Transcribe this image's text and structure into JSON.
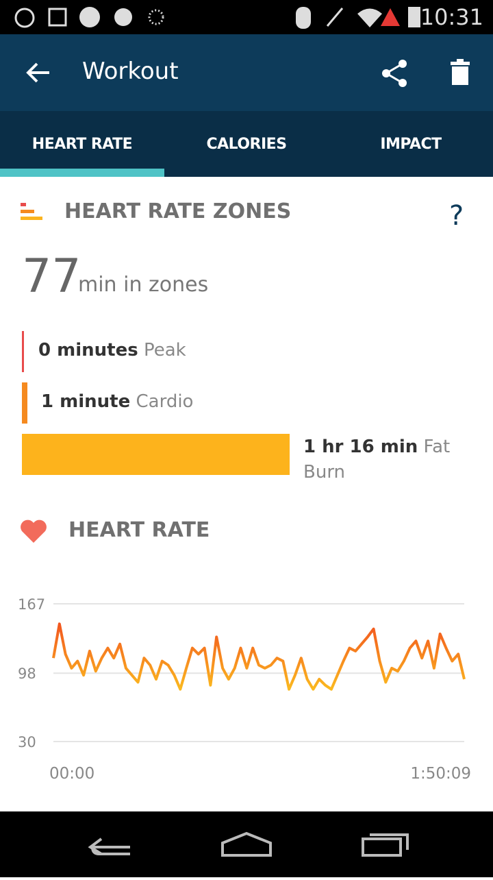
{
  "status_bar": {
    "time": "10:31"
  },
  "app_bar": {
    "title": "Workout"
  },
  "tabs": [
    "HEART RATE",
    "CALORIES",
    "IMPACT"
  ],
  "zones": {
    "title": "HEART RATE ZONES",
    "help": "?",
    "total": "77",
    "total_unit": "min in zones",
    "items": [
      {
        "amount": "0 minutes",
        "name": "Peak"
      },
      {
        "amount": "1 minute",
        "name": "Cardio"
      },
      {
        "amount": "1 hr 16 min",
        "name": "Fat Burn"
      }
    ]
  },
  "heart_rate": {
    "title": "HEART RATE",
    "ylim": [
      30,
      167
    ],
    "yticks": [
      30,
      98,
      167
    ],
    "x_start": "00:00",
    "x_end": "1:50:09",
    "values": [
      113,
      147,
      117,
      103,
      110,
      96,
      120,
      100,
      113,
      123,
      113,
      127,
      103,
      96,
      89,
      113,
      106,
      92,
      110,
      106,
      96,
      82,
      103,
      123,
      117,
      123,
      86,
      134,
      103,
      92,
      103,
      123,
      103,
      123,
      106,
      103,
      106,
      113,
      110,
      82,
      96,
      113,
      92,
      82,
      92,
      86,
      82,
      96,
      110,
      123,
      120,
      127,
      134,
      142,
      110,
      89,
      103,
      100,
      110,
      123,
      130,
      113,
      130,
      103,
      137,
      123,
      110,
      117,
      92
    ]
  }
}
